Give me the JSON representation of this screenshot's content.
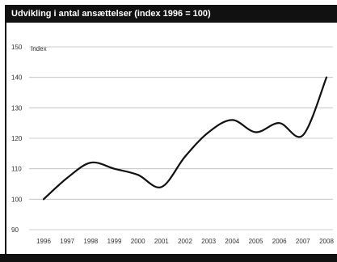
{
  "chart_data": {
    "type": "line",
    "title": "Udvikling i antal ansættelser (index 1996 = 100)",
    "unit_label": "Index",
    "categories": [
      "1996",
      "1997",
      "1998",
      "1999",
      "2000",
      "2001",
      "2002",
      "2003",
      "2004",
      "2005",
      "2006",
      "2007",
      "2008"
    ],
    "series": [
      {
        "values": [
          100,
          107,
          112,
          110,
          108,
          104,
          114,
          122,
          126,
          122,
          125,
          121,
          140
        ]
      }
    ],
    "ylim": [
      90,
      150
    ],
    "yticks": [
      90,
      100,
      110,
      120,
      130,
      140,
      150
    ],
    "grid": true,
    "colors": {
      "line": "#111111",
      "grid": "#bbbbbb",
      "bars": "#111111"
    }
  }
}
